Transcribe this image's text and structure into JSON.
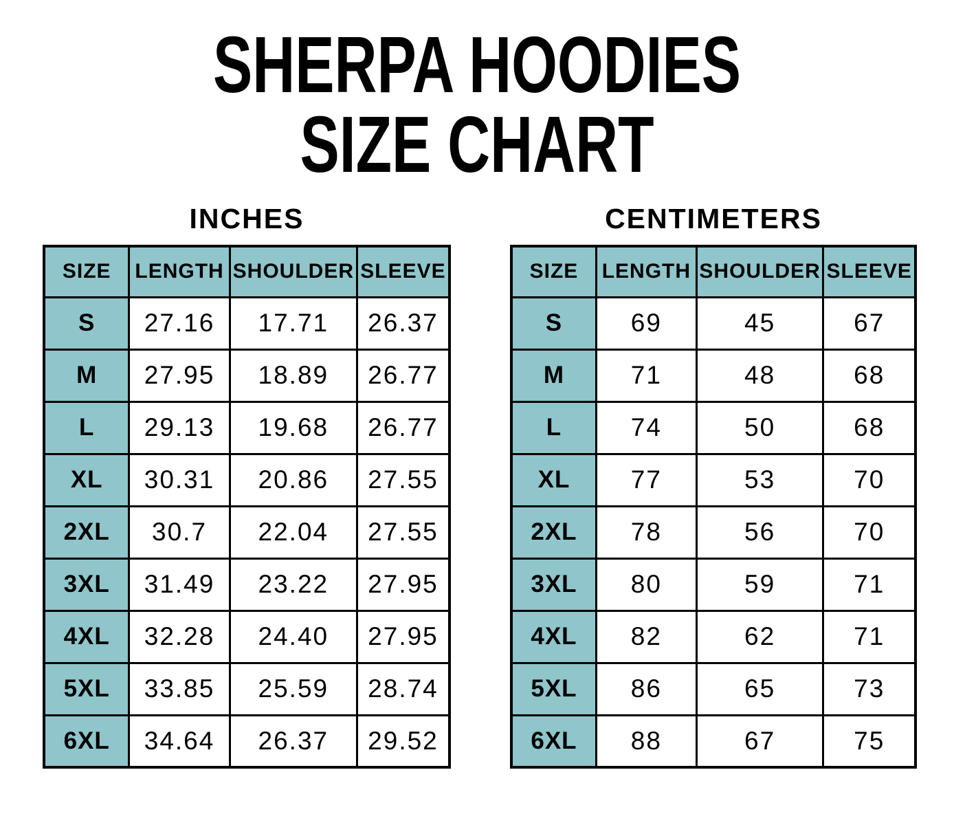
{
  "title": {
    "line1": "SHERPA HOODIES",
    "line2": "SIZE CHART"
  },
  "colors": {
    "header_fill": "#8FC5CB",
    "border": "#000000",
    "text": "#000000",
    "background": "#FFFFFF"
  },
  "tables": [
    {
      "unit_label": "INCHES",
      "columns": [
        "SIZE",
        "LENGTH",
        "SHOULDER",
        "SLEEVE"
      ],
      "rows": [
        {
          "size": "S",
          "values": [
            "27.16",
            "17.71",
            "26.37"
          ]
        },
        {
          "size": "M",
          "values": [
            "27.95",
            "18.89",
            "26.77"
          ]
        },
        {
          "size": "L",
          "values": [
            "29.13",
            "19.68",
            "26.77"
          ]
        },
        {
          "size": "XL",
          "values": [
            "30.31",
            "20.86",
            "27.55"
          ]
        },
        {
          "size": "2XL",
          "values": [
            "30.7",
            "22.04",
            "27.55"
          ]
        },
        {
          "size": "3XL",
          "values": [
            "31.49",
            "23.22",
            "27.95"
          ]
        },
        {
          "size": "4XL",
          "values": [
            "32.28",
            "24.40",
            "27.95"
          ]
        },
        {
          "size": "5XL",
          "values": [
            "33.85",
            "25.59",
            "28.74"
          ]
        },
        {
          "size": "6XL",
          "values": [
            "34.64",
            "26.37",
            "29.52"
          ]
        }
      ]
    },
    {
      "unit_label": "CENTIMETERS",
      "columns": [
        "SIZE",
        "LENGTH",
        "SHOULDER",
        "SLEEVE"
      ],
      "rows": [
        {
          "size": "S",
          "values": [
            "69",
            "45",
            "67"
          ]
        },
        {
          "size": "M",
          "values": [
            "71",
            "48",
            "68"
          ]
        },
        {
          "size": "L",
          "values": [
            "74",
            "50",
            "68"
          ]
        },
        {
          "size": "XL",
          "values": [
            "77",
            "53",
            "70"
          ]
        },
        {
          "size": "2XL",
          "values": [
            "78",
            "56",
            "70"
          ]
        },
        {
          "size": "3XL",
          "values": [
            "80",
            "59",
            "71"
          ]
        },
        {
          "size": "4XL",
          "values": [
            "82",
            "62",
            "71"
          ]
        },
        {
          "size": "5XL",
          "values": [
            "86",
            "65",
            "73"
          ]
        },
        {
          "size": "6XL",
          "values": [
            "88",
            "67",
            "75"
          ]
        }
      ]
    }
  ]
}
